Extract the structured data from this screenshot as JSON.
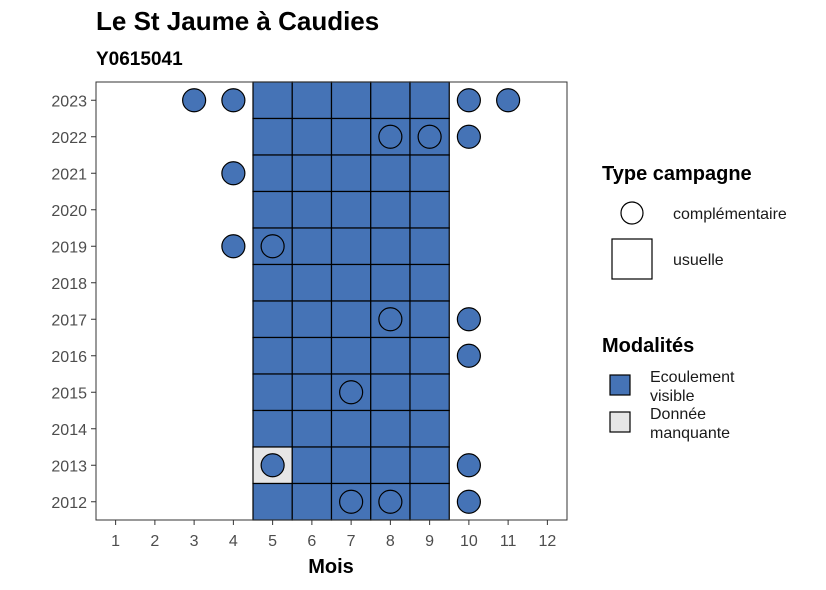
{
  "chart_data": {
    "type": "heatmap",
    "title": "Le St Jaume à Caudies",
    "subtitle": "Y0615041",
    "xlabel": "Mois",
    "ylabel": "",
    "x_ticks": [
      1,
      2,
      3,
      4,
      5,
      6,
      7,
      8,
      9,
      10,
      11,
      12
    ],
    "y_ticks": [
      2012,
      2013,
      2014,
      2015,
      2016,
      2017,
      2018,
      2019,
      2020,
      2021,
      2022,
      2023
    ],
    "xlim": [
      0.5,
      12.5
    ],
    "ylim": [
      2011.5,
      2023.5
    ],
    "grid": false,
    "legend_position": "right",
    "colors": {
      "ecoulement_visible": "#4573B6",
      "donnee_manquante": "#E6E6E6",
      "outline": "#000000"
    },
    "legends": {
      "type_campagne": {
        "title": "Type campagne",
        "items": [
          {
            "shape": "circle",
            "label": "complémentaire"
          },
          {
            "shape": "square",
            "label": "usuelle"
          }
        ]
      },
      "modalites": {
        "title": "Modalités",
        "items": [
          {
            "key": "ecoulement_visible",
            "label_lines": [
              "Ecoulement",
              "visible"
            ]
          },
          {
            "key": "donnee_manquante",
            "label_lines": [
              "Donnée",
              "manquante"
            ]
          }
        ]
      }
    },
    "usuelle": [
      {
        "year": 2023,
        "months": [
          5,
          6,
          7,
          8,
          9
        ],
        "modalite": "ecoulement_visible"
      },
      {
        "year": 2022,
        "months": [
          5,
          6,
          7,
          8,
          9
        ],
        "modalite": "ecoulement_visible"
      },
      {
        "year": 2021,
        "months": [
          5,
          6,
          7,
          8,
          9
        ],
        "modalite": "ecoulement_visible"
      },
      {
        "year": 2020,
        "months": [
          5,
          6,
          7,
          8,
          9
        ],
        "modalite": "ecoulement_visible"
      },
      {
        "year": 2019,
        "months": [
          5,
          6,
          7,
          8,
          9
        ],
        "modalite": "ecoulement_visible"
      },
      {
        "year": 2018,
        "months": [
          5,
          6,
          7,
          8,
          9
        ],
        "modalite": "ecoulement_visible"
      },
      {
        "year": 2017,
        "months": [
          5,
          6,
          7,
          8,
          9
        ],
        "modalite": "ecoulement_visible"
      },
      {
        "year": 2016,
        "months": [
          5,
          6,
          7,
          8,
          9
        ],
        "modalite": "ecoulement_visible"
      },
      {
        "year": 2015,
        "months": [
          5,
          6,
          7,
          8,
          9
        ],
        "modalite": "ecoulement_visible"
      },
      {
        "year": 2014,
        "months": [
          5,
          6,
          7,
          8,
          9
        ],
        "modalite": "ecoulement_visible"
      },
      {
        "year": 2013,
        "months": [
          5
        ],
        "modalite": "donnee_manquante"
      },
      {
        "year": 2013,
        "months": [
          6,
          7,
          8,
          9
        ],
        "modalite": "ecoulement_visible"
      },
      {
        "year": 2012,
        "months": [
          5,
          6,
          7,
          8,
          9
        ],
        "modalite": "ecoulement_visible"
      }
    ],
    "complementaire": [
      {
        "year": 2023,
        "month": 3,
        "modalite": "ecoulement_visible"
      },
      {
        "year": 2023,
        "month": 4,
        "modalite": "ecoulement_visible"
      },
      {
        "year": 2023,
        "month": 10,
        "modalite": "ecoulement_visible"
      },
      {
        "year": 2023,
        "month": 11,
        "modalite": "ecoulement_visible"
      },
      {
        "year": 2022,
        "month": 8,
        "modalite": "ecoulement_visible"
      },
      {
        "year": 2022,
        "month": 9,
        "modalite": "ecoulement_visible"
      },
      {
        "year": 2022,
        "month": 10,
        "modalite": "ecoulement_visible"
      },
      {
        "year": 2021,
        "month": 4,
        "modalite": "ecoulement_visible"
      },
      {
        "year": 2019,
        "month": 4,
        "modalite": "ecoulement_visible"
      },
      {
        "year": 2019,
        "month": 5,
        "modalite": "ecoulement_visible"
      },
      {
        "year": 2017,
        "month": 8,
        "modalite": "ecoulement_visible"
      },
      {
        "year": 2017,
        "month": 10,
        "modalite": "ecoulement_visible"
      },
      {
        "year": 2016,
        "month": 10,
        "modalite": "ecoulement_visible"
      },
      {
        "year": 2015,
        "month": 7,
        "modalite": "ecoulement_visible"
      },
      {
        "year": 2013,
        "month": 5,
        "modalite": "ecoulement_visible"
      },
      {
        "year": 2013,
        "month": 10,
        "modalite": "ecoulement_visible"
      },
      {
        "year": 2012,
        "month": 7,
        "modalite": "ecoulement_visible"
      },
      {
        "year": 2012,
        "month": 8,
        "modalite": "ecoulement_visible"
      },
      {
        "year": 2012,
        "month": 10,
        "modalite": "ecoulement_visible"
      }
    ]
  }
}
